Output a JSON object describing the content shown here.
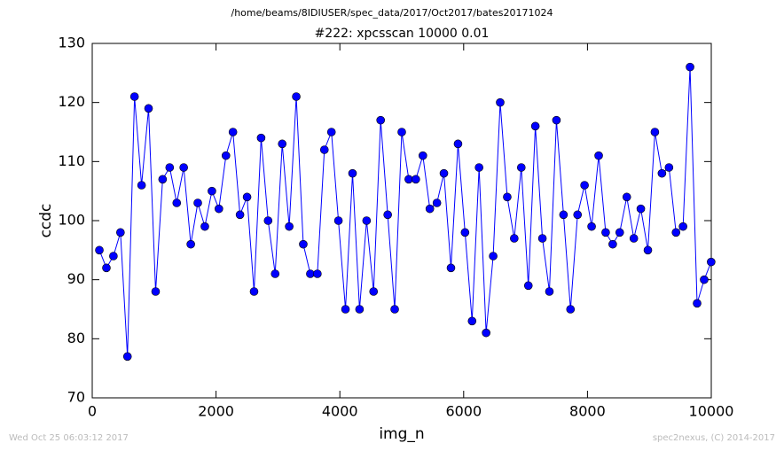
{
  "chart_data": {
    "type": "line",
    "suptitle": "/home/beams/8IDIUSER/spec_data/2017/Oct2017/bates20171024",
    "title": "#222: xpcsscan 10000 0.01",
    "x_label": "img_n",
    "y_label": "ccdc",
    "footer_left": "Wed Oct 25 06:03:12 2017",
    "footer_right": "spec2nexus, (C) 2014-2017",
    "x": [
      115,
      229,
      342,
      456,
      569,
      683,
      797,
      910,
      1024,
      1137,
      1251,
      1365,
      1478,
      1592,
      1705,
      1819,
      1933,
      2046,
      2160,
      2273,
      2387,
      2501,
      2614,
      2728,
      2841,
      2955,
      3069,
      3182,
      3296,
      3409,
      3523,
      3637,
      3750,
      3864,
      3977,
      4091,
      4205,
      4318,
      4432,
      4545,
      4659,
      4773,
      4886,
      5000,
      5113,
      5227,
      5341,
      5454,
      5568,
      5681,
      5795,
      5909,
      6022,
      6136,
      6249,
      6363,
      6477,
      6590,
      6704,
      6817,
      6931,
      7045,
      7158,
      7272,
      7385,
      7499,
      7613,
      7726,
      7840,
      7953,
      8067,
      8181,
      8294,
      8408,
      8521,
      8635,
      8749,
      8862,
      8976,
      9089,
      9203,
      9317,
      9430,
      9544,
      9657,
      9771,
      9885,
      9998
    ],
    "series": [
      {
        "name": "ccdc",
        "color": "#0000ff",
        "values": [
          95,
          92,
          94,
          98,
          77,
          121,
          106,
          119,
          88,
          107,
          109,
          103,
          109,
          96,
          103,
          99,
          105,
          102,
          111,
          115,
          101,
          104,
          88,
          114,
          100,
          91,
          113,
          99,
          121,
          96,
          91,
          91,
          112,
          115,
          100,
          85,
          108,
          85,
          100,
          88,
          117,
          101,
          85,
          115,
          107,
          107,
          111,
          102,
          103,
          108,
          92,
          113,
          98,
          83,
          109,
          81,
          94,
          120,
          104,
          97,
          109,
          89,
          116,
          97,
          88,
          117,
          101,
          85,
          101,
          106,
          99,
          111,
          98,
          96,
          98,
          104,
          97,
          102,
          95,
          115,
          108,
          109,
          98,
          99,
          126,
          86,
          90,
          93
        ]
      }
    ],
    "xlim": [
      0,
      10000
    ],
    "xticks": [
      0,
      2000,
      4000,
      6000,
      8000,
      10000
    ],
    "ylim": [
      70,
      130
    ],
    "yticks": [
      70,
      80,
      90,
      100,
      110,
      120,
      130
    ],
    "markers": true
  }
}
